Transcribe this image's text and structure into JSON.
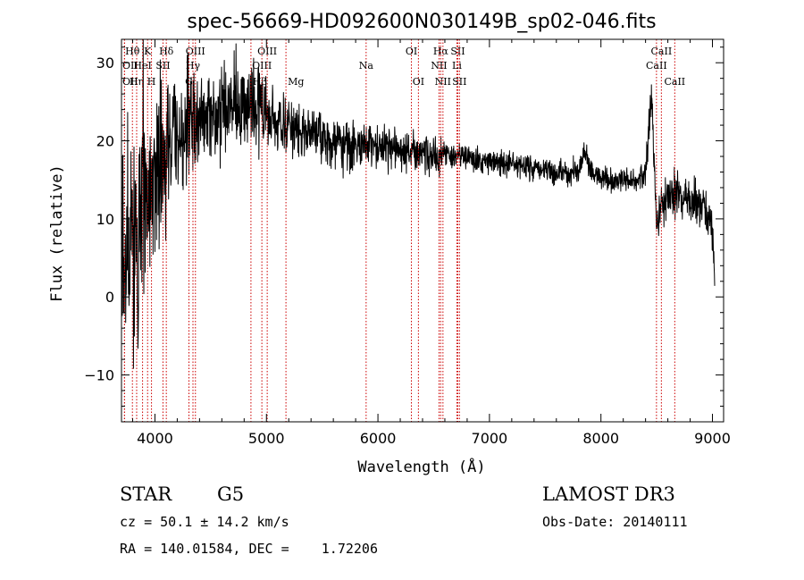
{
  "chart_data": {
    "type": "line",
    "title": "spec-56669-HD092600N030149B_sp02-046.fits",
    "xlabel": "Wavelength (Å)",
    "ylabel": "Flux (relative)",
    "xlim": [
      3700,
      9100
    ],
    "ylim": [
      -16,
      33
    ],
    "x_ticks": [
      4000,
      5000,
      6000,
      7000,
      8000,
      9000
    ],
    "y_ticks": [
      -10,
      0,
      10,
      20,
      30
    ],
    "x_tick_labels": [
      "4000",
      "5000",
      "6000",
      "7000",
      "8000",
      "9000"
    ],
    "y_tick_labels": [
      "−10",
      "0",
      "10",
      "20",
      "30"
    ],
    "grid": false,
    "line_color": "#000000",
    "marker_color": "#cc0000",
    "series": [
      {
        "name": "flux",
        "noise_seed": 56669,
        "x": [
          3700,
          3750,
          3800,
          3850,
          3900,
          3950,
          4000,
          4050,
          4100,
          4150,
          4200,
          4300,
          4400,
          4500,
          4600,
          4700,
          4800,
          4900,
          5000,
          5100,
          5200,
          5300,
          5400,
          5500,
          5600,
          5700,
          5800,
          5900,
          6000,
          6100,
          6200,
          6300,
          6400,
          6500,
          6600,
          6700,
          6800,
          6900,
          7000,
          7200,
          7400,
          7600,
          7800,
          7850,
          7900,
          7950,
          8000,
          8100,
          8200,
          8300,
          8400,
          8450,
          8480,
          8500,
          8550,
          8600,
          8700,
          8800,
          8900,
          9000
        ],
        "y": [
          4,
          6,
          9,
          12,
          14,
          14,
          15,
          17,
          19,
          20,
          21,
          22,
          23,
          23.5,
          23.8,
          24,
          24,
          23.5,
          23,
          22.5,
          22,
          21.5,
          21,
          20.5,
          20,
          19.5,
          19.5,
          19.5,
          19.5,
          19,
          18.5,
          18.5,
          18.5,
          18,
          18,
          18,
          18,
          17.5,
          17.5,
          17,
          16.5,
          16,
          16,
          19,
          16,
          15.5,
          15.5,
          15,
          15,
          15,
          15.5,
          26,
          16,
          10,
          12,
          13,
          13,
          12,
          11,
          10
        ]
      }
    ],
    "lines": [
      {
        "label": "Hθ",
        "wl": 3798,
        "row": 0
      },
      {
        "label": "OII",
        "wl": 3727,
        "row": 1
      },
      {
        "label": "OII",
        "wl": 3727,
        "row": 2
      },
      {
        "label": "Hη",
        "wl": 3836,
        "row": 2
      },
      {
        "label": "HeI",
        "wl": 3889,
        "row": 1
      },
      {
        "label": "K",
        "wl": 3934,
        "row": 0
      },
      {
        "label": "H",
        "wl": 3969,
        "row": 2
      },
      {
        "label": "SII",
        "wl": 4072,
        "row": 1
      },
      {
        "label": "Hδ",
        "wl": 4102,
        "row": 0
      },
      {
        "label": "OIII",
        "wl": 4363,
        "row": 0
      },
      {
        "label": "Hγ",
        "wl": 4341,
        "row": 1
      },
      {
        "label": "G",
        "wl": 4305,
        "row": 2
      },
      {
        "label": "Hβ",
        "wl": 4861,
        "row": 3
      },
      {
        "label": "OIII",
        "wl": 4959,
        "row": 1
      },
      {
        "label": "OIII",
        "wl": 5007,
        "row": 0
      },
      {
        "label": "Mg",
        "wl": 5175,
        "row": 3
      },
      {
        "label": "Na",
        "wl": 5894,
        "row": 1
      },
      {
        "label": "OI",
        "wl": 6300,
        "row": 0
      },
      {
        "label": "OI",
        "wl": 6363,
        "row": 2
      },
      {
        "label": "Hα",
        "wl": 6563,
        "row": 0
      },
      {
        "label": "NII",
        "wl": 6548,
        "row": 1
      },
      {
        "label": "NII",
        "wl": 6583,
        "row": 2
      },
      {
        "label": "SII",
        "wl": 6716,
        "row": 0
      },
      {
        "label": "Li",
        "wl": 6708,
        "row": 1
      },
      {
        "label": "SII",
        "wl": 6731,
        "row": 2
      },
      {
        "label": "CaII",
        "wl": 8542,
        "row": 0
      },
      {
        "label": "CaII",
        "wl": 8498,
        "row": 1
      },
      {
        "label": "CaII",
        "wl": 8662,
        "row": 2
      }
    ]
  },
  "footer": {
    "object_class": "STAR",
    "subclass": "G5",
    "survey": "LAMOST DR3",
    "cz": "cz = 50.1 ± 14.2 km/s",
    "obs_date": "Obs-Date: 20140111",
    "coords": "RA = 140.01584, DEC =    1.72206"
  }
}
